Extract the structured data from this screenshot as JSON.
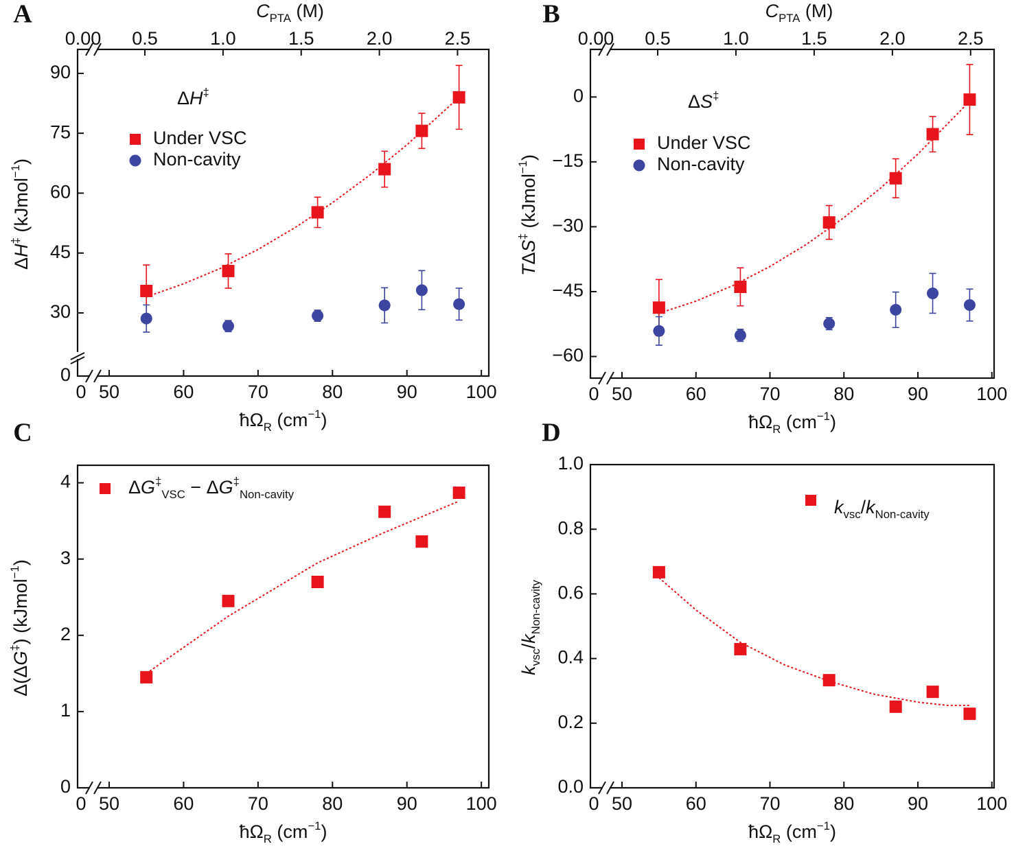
{
  "chart_data": [
    {
      "type": "scatter",
      "panel": "A",
      "annotation": [
        "Δ",
        {
          "it": "H"
        },
        {
          "sup": "‡"
        }
      ],
      "xlabel": [
        "ħΩ",
        {
          "sub": "R"
        },
        "  (cm",
        {
          "sup": "−1"
        },
        ")"
      ],
      "ylabel": [
        "Δ",
        {
          "it": "H"
        },
        {
          "sup": "‡"
        },
        " (kJmol",
        {
          "sup": "−1"
        },
        ")"
      ],
      "x2label": [
        {
          "it": "C"
        },
        {
          "sub": "PTA"
        },
        " (M)"
      ],
      "xlim": [
        0,
        101
      ],
      "xticks": [
        0,
        50,
        60,
        70,
        80,
        90,
        100
      ],
      "xbreak": true,
      "xtick_color": "#e8141c",
      "x2lim": [
        0,
        2.7
      ],
      "x2ticks": [
        {
          "value": 0,
          "label": "0.00"
        },
        0.5,
        {
          "value": 1,
          "label": "1.0"
        },
        1.5,
        {
          "value": 2,
          "label": "2.0"
        },
        2.5
      ],
      "x2break": true,
      "x2tick_color": "#3c3c9c",
      "ylim": [
        0,
        96
      ],
      "yticks": [
        0,
        30,
        45,
        60,
        75,
        90
      ],
      "ybreak": true,
      "legend": "upper left",
      "x": [
        55,
        66,
        78,
        87,
        92,
        97
      ],
      "series": [
        {
          "name": "Under VSC",
          "color": "#e8141c",
          "marker": "square",
          "values": [
            35.5,
            40.5,
            55.2,
            66,
            75.6,
            84
          ],
          "errors": [
            6.5,
            4.3,
            3.8,
            4.5,
            4.4,
            8
          ]
        },
        {
          "name": "Non-cavity",
          "color": "#3c46a0",
          "marker": "circle",
          "values": [
            28.6,
            26.7,
            29.3,
            31.9,
            35.7,
            32.2
          ],
          "errors": [
            3.4,
            1.4,
            1.4,
            4.4,
            4.9,
            4
          ]
        }
      ],
      "fit": {
        "color": "#e8141c",
        "x": [
          55,
          60,
          65,
          70,
          75,
          80,
          85,
          90,
          97
        ],
        "values": [
          34,
          37.3,
          41.2,
          45.9,
          51.4,
          57.6,
          64.5,
          72.1,
          84
        ]
      }
    },
    {
      "type": "scatter",
      "panel": "B",
      "annotation": [
        "Δ",
        {
          "it": "S"
        },
        {
          "sup": "‡"
        }
      ],
      "xlabel": [
        "ħΩ",
        {
          "sub": "R"
        },
        "  (cm",
        {
          "sup": "−1"
        },
        ")"
      ],
      "ylabel": [
        {
          "it": "T"
        },
        "Δ",
        {
          "it": "S"
        },
        {
          "sup": "‡"
        },
        " (kJmol",
        {
          "sup": "−1"
        },
        ")"
      ],
      "x2label": [
        {
          "it": "C"
        },
        {
          "sub": "PTA"
        },
        " (M)"
      ],
      "xlim": [
        0,
        100.3
      ],
      "xticks": [
        0,
        50,
        60,
        70,
        80,
        90,
        100
      ],
      "xbreak": true,
      "xtick_color": "#e8141c",
      "x2lim": [
        0,
        2.65
      ],
      "x2ticks": [
        {
          "value": 0,
          "label": "0.00"
        },
        0.5,
        {
          "value": 1,
          "label": "1.0"
        },
        1.5,
        {
          "value": 2,
          "label": "2.0"
        },
        2.5
      ],
      "x2break": true,
      "x2tick_color": "#3c3c9c",
      "ylim": [
        -65,
        11
      ],
      "yticks": [
        {
          "value": -60,
          "label": "−60"
        },
        {
          "value": -45,
          "label": "−45"
        },
        {
          "value": -30,
          "label": "−30"
        },
        {
          "value": -15,
          "label": "−15"
        },
        0
      ],
      "legend": "upper left",
      "x": [
        55,
        66,
        78,
        87,
        92,
        97
      ],
      "series": [
        {
          "name": "Under VSC",
          "color": "#e8141c",
          "marker": "square",
          "values": [
            -48.7,
            -43.9,
            -29,
            -18.8,
            -8.6,
            -0.6
          ],
          "errors": [
            6.5,
            4.4,
            3.9,
            4.5,
            4.1,
            8.1
          ]
        },
        {
          "name": "Non-cavity",
          "color": "#3c46a0",
          "marker": "circle",
          "values": [
            -54.1,
            -55.1,
            -52.4,
            -49.2,
            -45.4,
            -48.1
          ],
          "errors": [
            3.3,
            1.4,
            1.4,
            4.1,
            4.6,
            3.7
          ]
        }
      ],
      "fit": {
        "color": "#e8141c",
        "x": [
          55,
          60,
          65,
          70,
          75,
          80,
          85,
          90,
          97
        ],
        "values": [
          -50,
          -47.2,
          -43.6,
          -39.2,
          -34,
          -27.9,
          -21,
          -13.2,
          -1
        ]
      }
    },
    {
      "type": "scatter",
      "panel": "C",
      "xlabel": [
        "ħΩ",
        {
          "sub": "R"
        },
        "  (cm",
        {
          "sup": "−1"
        },
        ")"
      ],
      "ylabel": [
        "Δ(Δ",
        {
          "it": "G"
        },
        {
          "sup": "‡"
        },
        ") (kJmol",
        {
          "sup": "−1"
        },
        ")"
      ],
      "xlim": [
        0,
        101
      ],
      "xticks": [
        0,
        50,
        60,
        70,
        80,
        90,
        100
      ],
      "xbreak": true,
      "ylim": [
        0,
        4.23
      ],
      "yticks": [
        0,
        1,
        2,
        3,
        4
      ],
      "legend": "upper left",
      "x": [
        55,
        66,
        78,
        87,
        92,
        97
      ],
      "series": [
        {
          "name": [
            "Δ",
            {
              "it": "G"
            },
            {
              "sup": "‡"
            },
            {
              "sub": "VSC"
            },
            " − Δ",
            {
              "it": "G"
            },
            {
              "sup": "‡"
            },
            {
              "sub": "Non-cavity"
            }
          ],
          "color": "#e8141c",
          "marker": "square",
          "values": [
            1.45,
            2.45,
            2.7,
            3.62,
            3.23,
            3.87
          ]
        }
      ],
      "fit": {
        "color": "#e8141c",
        "x": [
          55,
          66,
          78,
          87,
          97
        ],
        "values": [
          1.5,
          2.25,
          2.95,
          3.35,
          3.76
        ]
      }
    },
    {
      "type": "scatter",
      "panel": "D",
      "xlabel": [
        "ħΩ",
        {
          "sub": "R"
        },
        "  (cm",
        {
          "sup": "−1"
        },
        ")"
      ],
      "ylabel": [
        {
          "it": "k"
        },
        {
          "sub": "vsc"
        },
        "/",
        {
          "it": "k"
        },
        {
          "sub": "Non-cavity"
        }
      ],
      "xlim": [
        0,
        100.3
      ],
      "xticks": [
        0,
        50,
        60,
        70,
        80,
        90,
        100
      ],
      "xbreak": true,
      "ylim": [
        0,
        1
      ],
      "yticks": [
        {
          "value": 0,
          "label": "0.0"
        },
        0.2,
        0.4,
        0.6,
        0.8,
        {
          "value": 1,
          "label": "1.0"
        }
      ],
      "legend": "upper right",
      "x": [
        55,
        66,
        78,
        87,
        92,
        97
      ],
      "series": [
        {
          "name": [
            {
              "it": "k"
            },
            {
              "sub": "vsc"
            },
            "/",
            {
              "it": "k"
            },
            {
              "sub": "Non-cavity"
            }
          ],
          "color": "#e8141c",
          "marker": "square",
          "values": [
            0.667,
            0.429,
            0.333,
            0.251,
            0.297,
            0.229
          ]
        }
      ],
      "fit": {
        "color": "#e8141c",
        "x": [
          55,
          60,
          66,
          72,
          78,
          84,
          90,
          94,
          97
        ],
        "values": [
          0.65,
          0.55,
          0.45,
          0.38,
          0.33,
          0.29,
          0.265,
          0.255,
          0.255
        ]
      }
    }
  ]
}
